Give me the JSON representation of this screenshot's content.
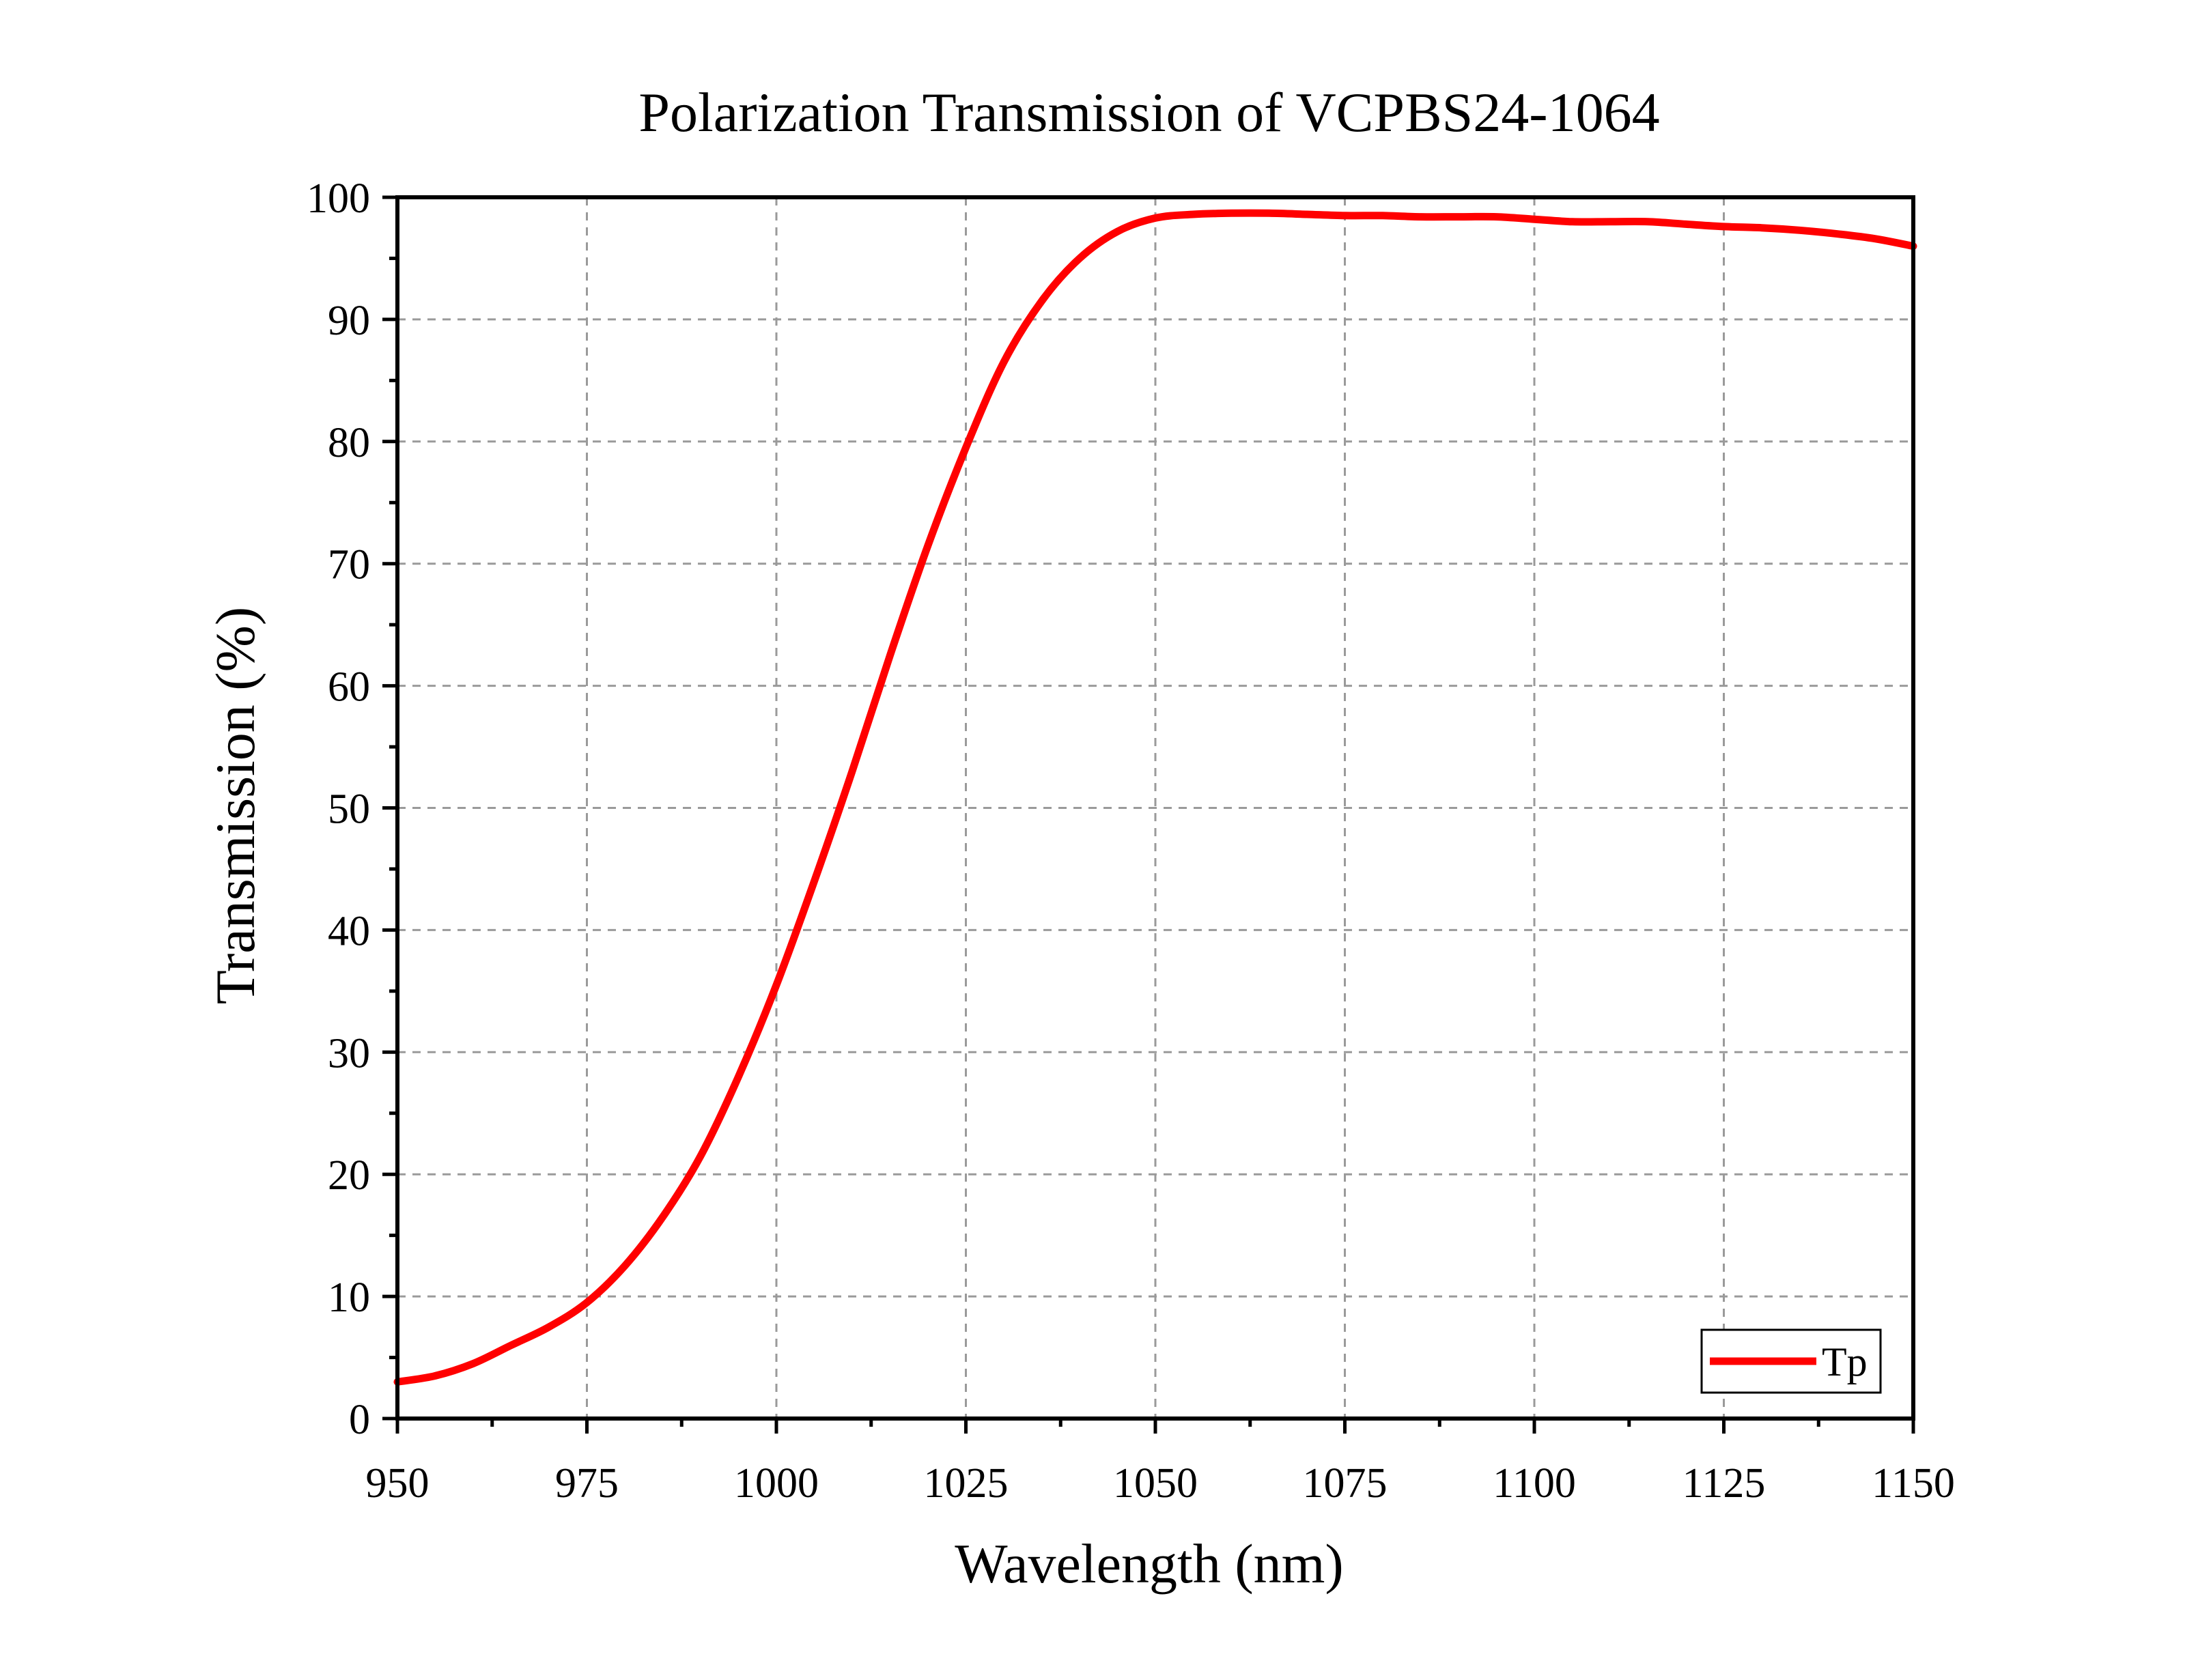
{
  "chart_data": {
    "type": "line",
    "title": "Polarization Transmission of VCPBS24-1064",
    "xlabel": "Wavelength (nm)",
    "ylabel": "Transmission (%)",
    "xlim": [
      950,
      1150
    ],
    "ylim": [
      0,
      100
    ],
    "xticks": [
      950,
      975,
      1000,
      1025,
      1050,
      1075,
      1100,
      1125,
      1150
    ],
    "yticks": [
      0,
      10,
      20,
      30,
      40,
      50,
      60,
      70,
      80,
      90,
      100
    ],
    "grid": true,
    "legend": "bottom-right",
    "series": [
      {
        "name": "Tp",
        "color": "#ff0000",
        "x": [
          950,
          955,
          960,
          965,
          970,
          975,
          980,
          985,
          990,
          995,
          1000,
          1005,
          1010,
          1015,
          1020,
          1025,
          1030,
          1035,
          1040,
          1045,
          1050,
          1055,
          1060,
          1065,
          1070,
          1075,
          1080,
          1085,
          1090,
          1095,
          1100,
          1105,
          1110,
          1115,
          1120,
          1125,
          1130,
          1135,
          1140,
          1145,
          1150
        ],
        "y": [
          3.0,
          3.5,
          4.5,
          6.0,
          7.5,
          9.5,
          12.5,
          16.5,
          21.5,
          28.0,
          35.5,
          44.0,
          53.0,
          62.5,
          71.5,
          79.5,
          86.5,
          91.5,
          95.0,
          97.2,
          98.3,
          98.6,
          98.7,
          98.7,
          98.6,
          98.5,
          98.5,
          98.4,
          98.4,
          98.4,
          98.2,
          98.0,
          98.0,
          98.0,
          97.8,
          97.6,
          97.5,
          97.3,
          97.0,
          96.6,
          96.0
        ]
      }
    ]
  }
}
